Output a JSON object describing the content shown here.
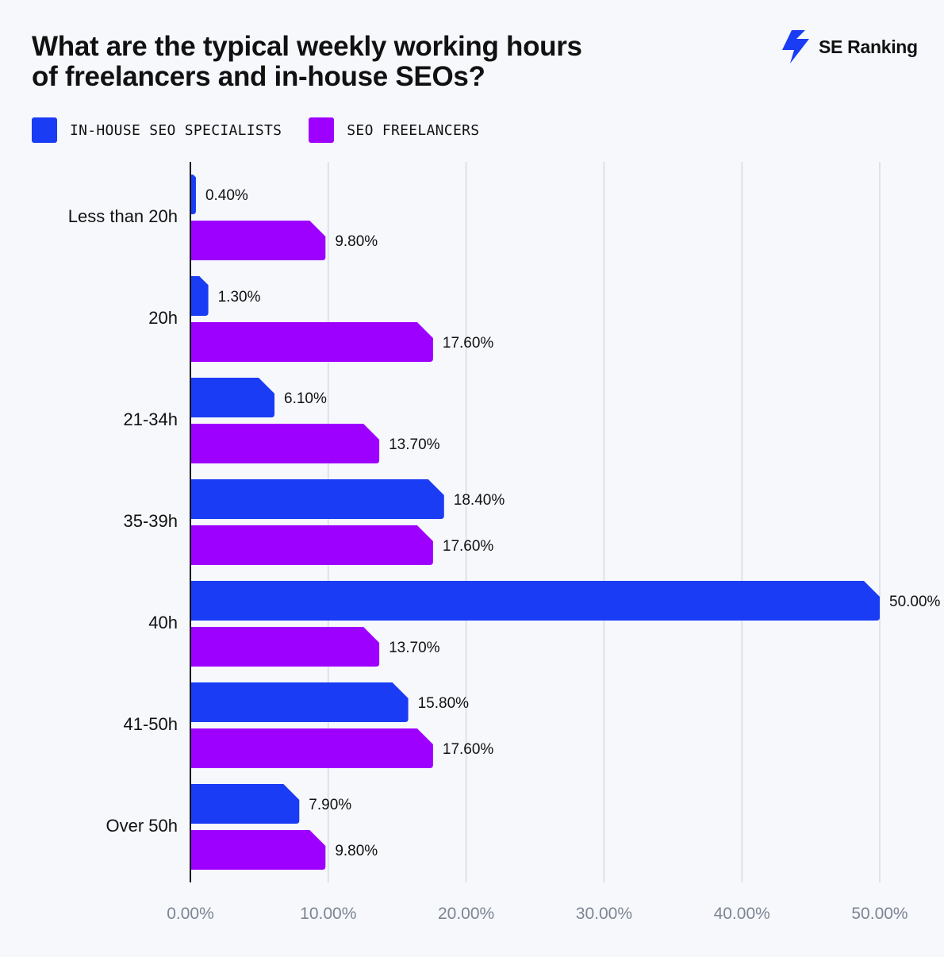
{
  "title_lines": [
    "What are the typical weekly working hours",
    "of freelancers and in-house SEOs?"
  ],
  "brand": {
    "name": "SE Ranking",
    "icon": "lightning-bolt-logo-icon",
    "color": "#1a3cf5"
  },
  "legend": [
    {
      "label": "IN-HOUSE SEO SPECIALISTS",
      "color": "#1a3cf5"
    },
    {
      "label": "SEO FREELANCERS",
      "color": "#9e00ff"
    }
  ],
  "chart_data": {
    "type": "bar",
    "orientation": "horizontal",
    "title": "What are the typical weekly working hours of freelancers and in-house SEOs?",
    "categories": [
      "Less than 20h",
      "20h",
      "21-34h",
      "35-39h",
      "40h",
      "41-50h",
      "Over 50h"
    ],
    "series": [
      {
        "name": "IN-HOUSE SEO SPECIALISTS",
        "color": "#1a3cf5",
        "values": [
          0.4,
          1.3,
          6.1,
          18.4,
          50.0,
          15.8,
          7.9
        ],
        "labels": [
          "0.40%",
          "1.30%",
          "6.10%",
          "18.40%",
          "50.00%",
          "15.80%",
          "7.90%"
        ]
      },
      {
        "name": "SEO FREELANCERS",
        "color": "#9e00ff",
        "values": [
          9.8,
          17.6,
          13.7,
          17.6,
          13.7,
          17.6,
          9.8
        ],
        "labels": [
          "9.80%",
          "17.60%",
          "13.70%",
          "17.60%",
          "13.70%",
          "17.60%",
          "9.80%"
        ]
      }
    ],
    "xlim": [
      0,
      50
    ],
    "xticks": [
      0,
      10,
      20,
      30,
      40,
      50
    ],
    "xtick_labels": [
      "0.00%",
      "10.00%",
      "20.00%",
      "30.00%",
      "40.00%",
      "50.00%"
    ],
    "grid": "vertical",
    "legend_position": "top-left"
  }
}
